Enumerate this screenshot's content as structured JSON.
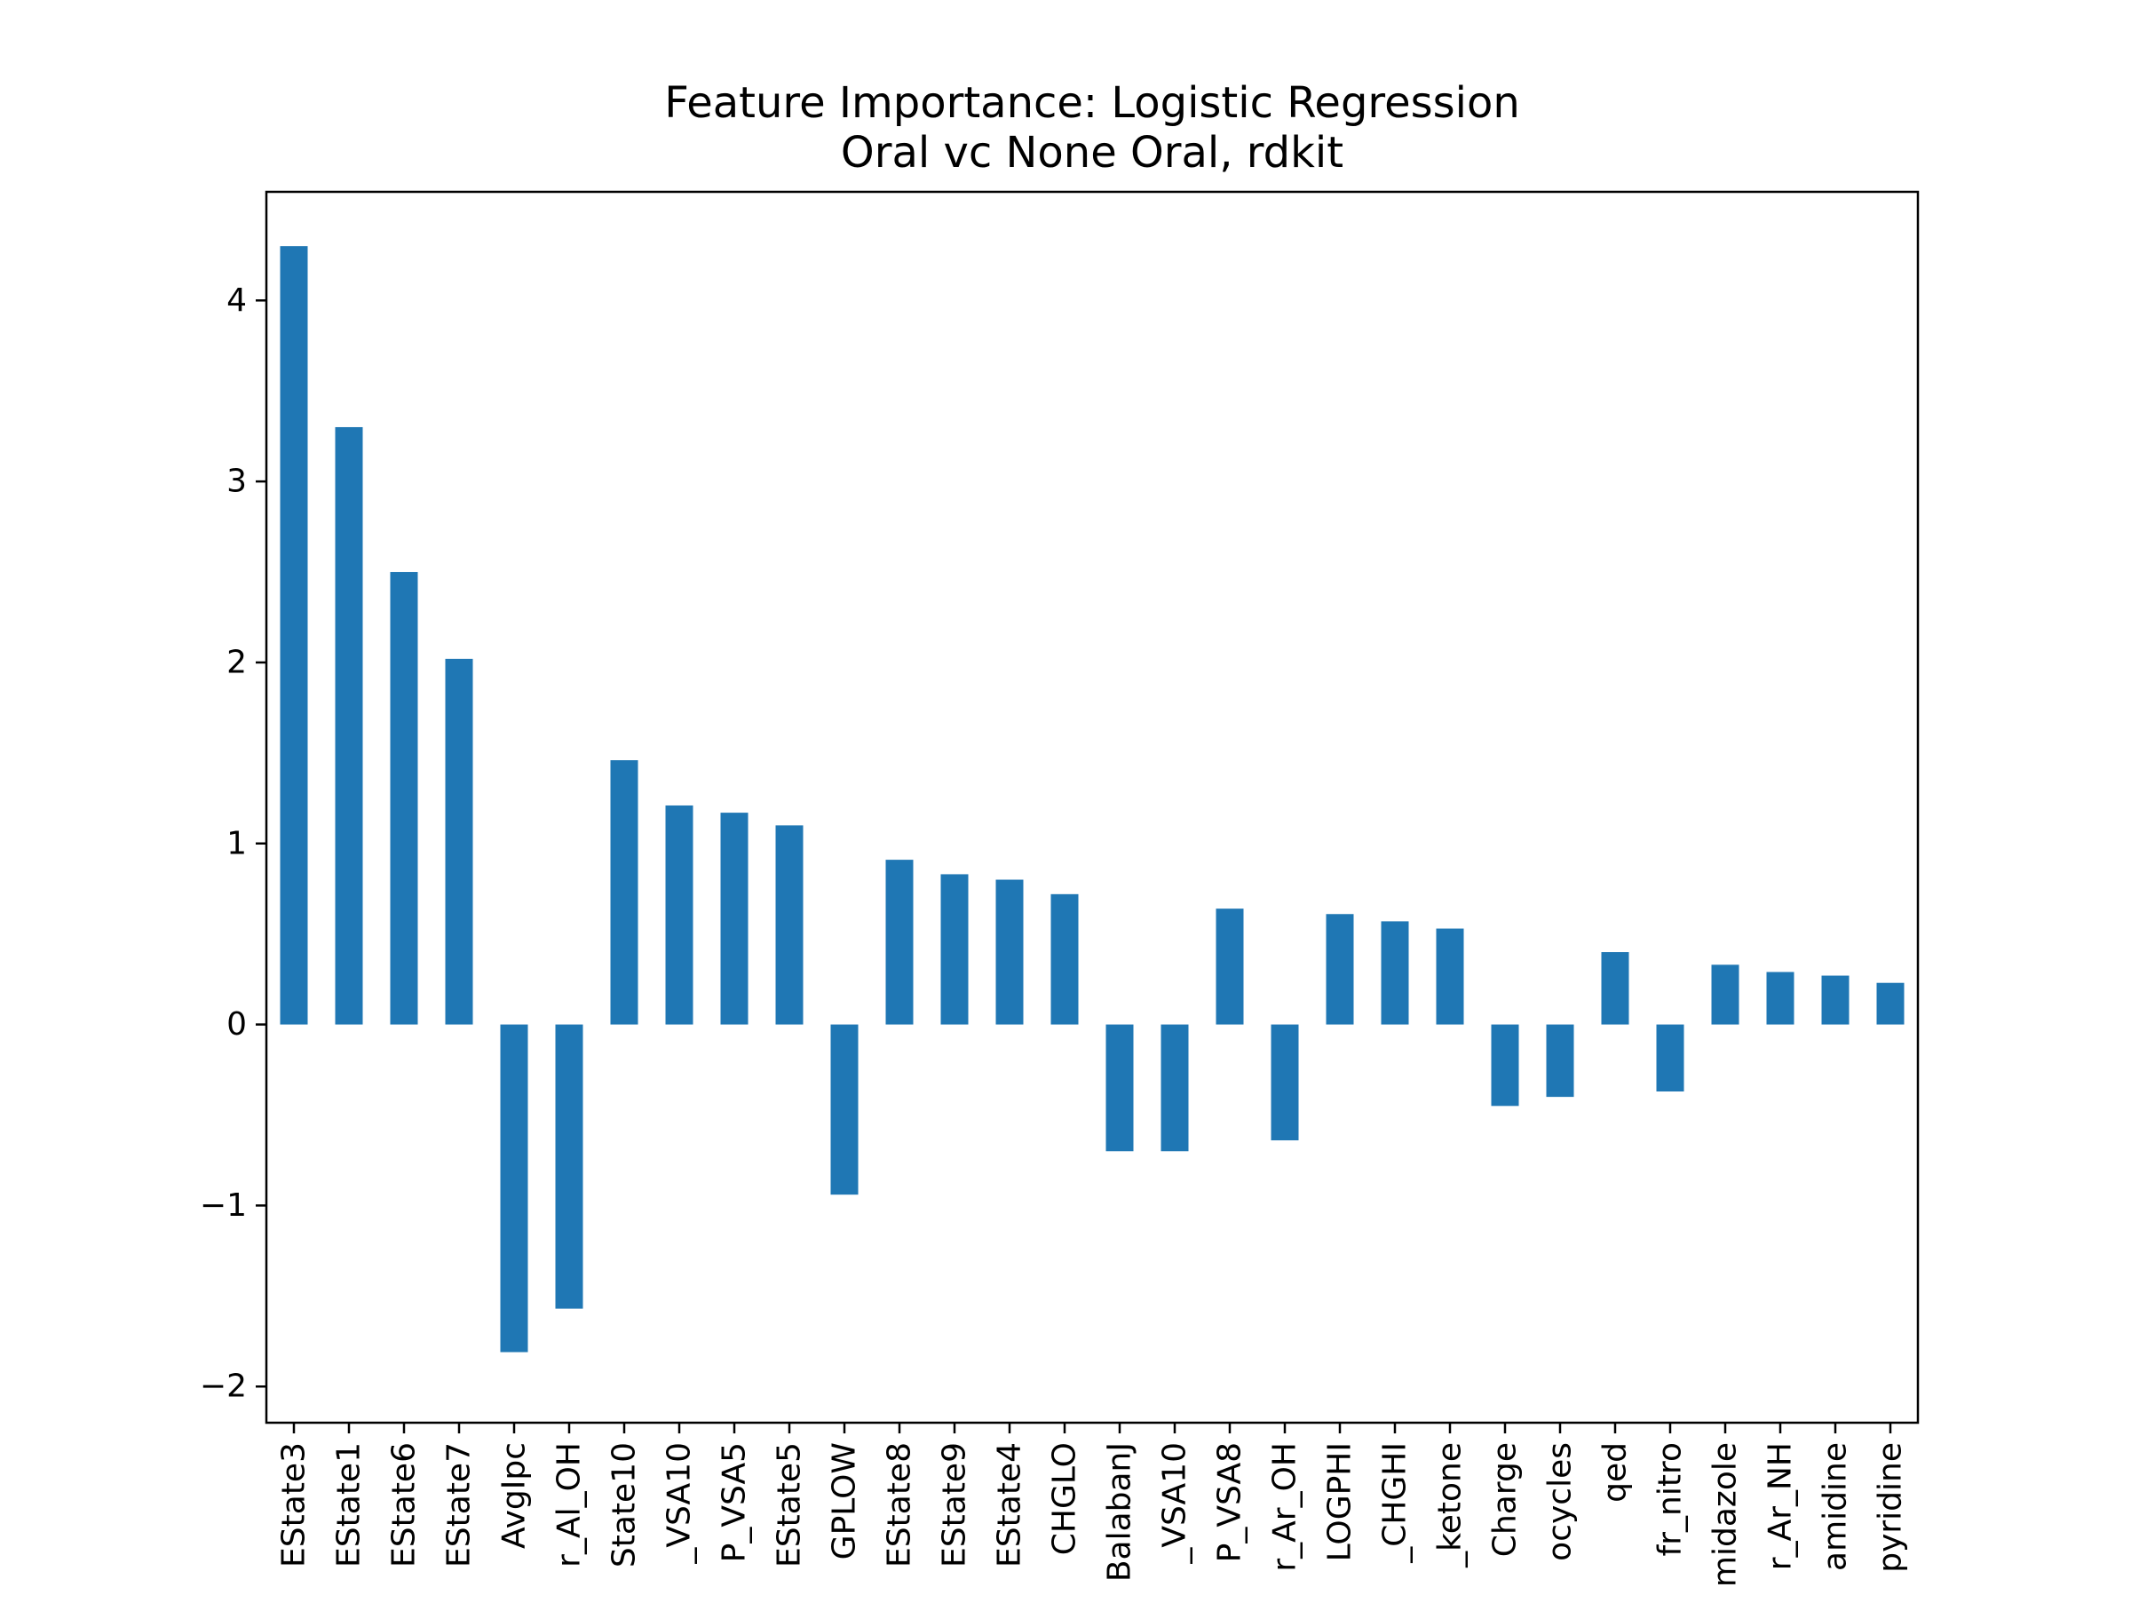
{
  "chart_data": {
    "type": "bar",
    "title": "Feature Importance: Logistic Regression",
    "subtitle": "Oral vc None Oral, rdkit",
    "xlabel": "",
    "ylabel": "",
    "ylim": [
      -2.2,
      4.6
    ],
    "yticks": [
      -2,
      -1,
      0,
      1,
      2,
      3,
      4
    ],
    "ytick_labels": [
      "−2",
      "−1",
      "0",
      "1",
      "2",
      "3",
      "4"
    ],
    "grid": false,
    "legend": "none",
    "bar_color": "#1f77b4",
    "categories": [
      "EState3",
      "EState1",
      "EState6",
      "EState7",
      "AvgIpc",
      "r_Al_OH",
      "State10",
      "_VSA10",
      "P_VSA5",
      "EState5",
      "GPLOW",
      "EState8",
      "EState9",
      "EState4",
      "CHGLO",
      "BalabanJ",
      "_VSA10",
      "P_VSA8",
      "r_Ar_OH",
      "LOGPHI",
      "_CHGHI",
      "_ketone",
      "Charge",
      "ocycles",
      "qed",
      "fr_nitro",
      "midazole",
      "r_Ar_NH",
      "amidine",
      "pyridine"
    ],
    "values": [
      4.3,
      3.3,
      2.5,
      2.02,
      -1.81,
      -1.57,
      1.46,
      1.21,
      1.17,
      1.1,
      -0.94,
      0.91,
      0.83,
      0.8,
      0.72,
      -0.7,
      -0.7,
      0.64,
      -0.64,
      0.61,
      0.57,
      0.53,
      -0.45,
      -0.4,
      0.4,
      -0.37,
      0.33,
      0.29,
      0.27,
      0.23
    ]
  }
}
